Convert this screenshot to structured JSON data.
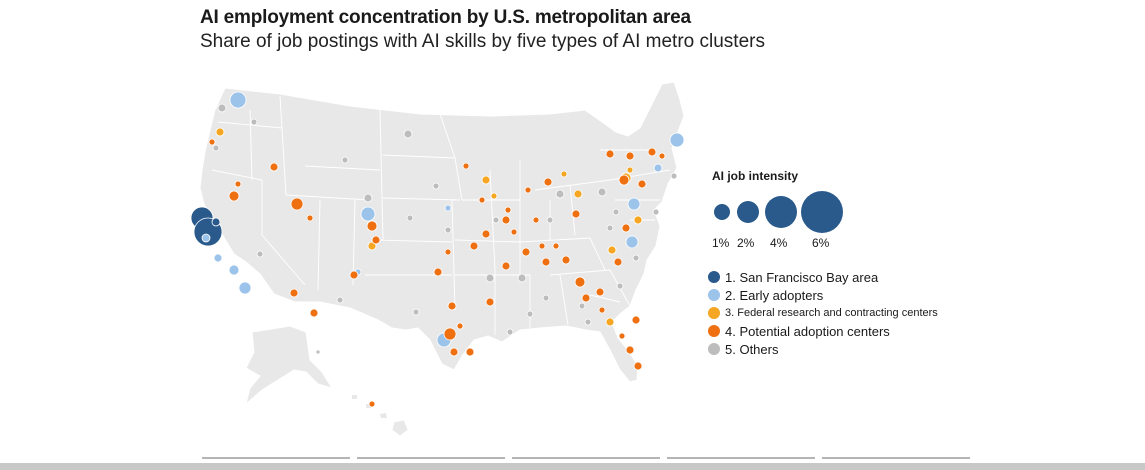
{
  "header": {
    "title": "AI employment concentration by U.S. metropolitan area",
    "subtitle": "Share of job postings with AI skills by five types of AI metro clusters"
  },
  "legend": {
    "size_title": "AI job intensity",
    "size_items": [
      {
        "label": "1%",
        "value": 1
      },
      {
        "label": "2%",
        "value": 2
      },
      {
        "label": "4%",
        "value": 4
      },
      {
        "label": "6%",
        "value": 6
      }
    ],
    "categories": [
      {
        "label": "1. San Francisco Bay area",
        "color": "#2a5a8c"
      },
      {
        "label": "2. Early adopters",
        "color": "#9cc3ea"
      },
      {
        "label": "3. Federal research and contracting centers",
        "color": "#f5a623"
      },
      {
        "label": "4. Potential adoption centers",
        "color": "#ef7010"
      },
      {
        "label": "5. Others",
        "color": "#bdbdbd"
      }
    ]
  },
  "colors": {
    "land": "#e8e8e8",
    "border": "#ffffff",
    "sf": "#2a5a8c",
    "early": "#9cc3ea",
    "federal": "#f5a623",
    "potential": "#ef7010",
    "others": "#bdbdbd"
  }
}
